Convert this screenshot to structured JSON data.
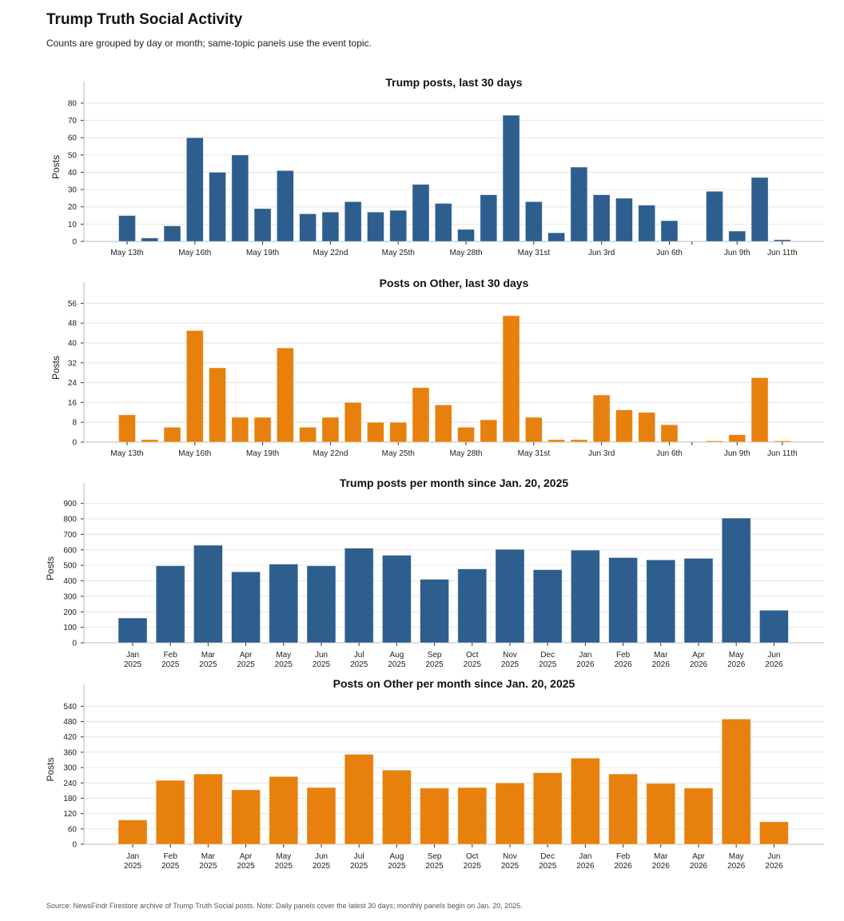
{
  "header": {
    "title": "Trump Truth Social Activity",
    "subtitle": "Counts are grouped by day or month; same-topic panels use the event topic."
  },
  "footer": {
    "note": "Source: NewsFindr Firestore archive of Trump Truth Social posts. Note: Daily panels cover the latest 30 days; monthly panels begin on Jan. 20, 2025."
  },
  "colors": {
    "blue": "#2e5e8e",
    "orange": "#e8800e",
    "grid": "#e6e6e6",
    "axis": "#bbbbbb"
  },
  "chart_data": [
    {
      "type": "bar",
      "title": "Trump posts, last 30 days",
      "ylabel": "Posts",
      "xlabel": "",
      "ylim": [
        0,
        86
      ],
      "yticks": [
        0,
        10,
        20,
        30,
        40,
        50,
        60,
        70,
        80
      ],
      "color": "blue",
      "grid": true,
      "x": [
        "May 13",
        "May 14",
        "May 15",
        "May 16",
        "May 17",
        "May 18",
        "May 19",
        "May 20",
        "May 21",
        "May 22",
        "May 23",
        "May 24",
        "May 25",
        "May 26",
        "May 27",
        "May 28",
        "May 29",
        "May 30",
        "May 31",
        "Jun 1",
        "Jun 2",
        "Jun 3",
        "Jun 4",
        "Jun 5",
        "Jun 6",
        "Jun 7",
        "Jun 8",
        "Jun 9",
        "Jun 10",
        "Jun 11"
      ],
      "values": [
        15,
        2,
        9,
        60,
        40,
        50,
        19,
        41,
        16,
        17,
        23,
        17,
        18,
        33,
        22,
        7,
        27,
        73,
        23,
        5,
        43,
        27,
        25,
        21,
        12,
        0,
        29,
        6,
        37,
        1
      ],
      "tick_labels": [
        {
          "index": 0,
          "label": "May 13th"
        },
        {
          "index": 3,
          "label": "May 16th"
        },
        {
          "index": 6,
          "label": "May 19th"
        },
        {
          "index": 9,
          "label": "May 22nd"
        },
        {
          "index": 12,
          "label": "May 25th"
        },
        {
          "index": 15,
          "label": "May 28th"
        },
        {
          "index": 18,
          "label": "May 31st"
        },
        {
          "index": 21,
          "label": "Jun 3rd"
        },
        {
          "index": 24,
          "label": "Jun 6th"
        },
        {
          "index": 27,
          "label": "Jun 9th"
        },
        {
          "index": 29,
          "label": "Jun 11th"
        }
      ]
    },
    {
      "type": "bar",
      "title": "Posts on Other, last 30 days",
      "ylabel": "Posts",
      "xlabel": "",
      "ylim": [
        0,
        60
      ],
      "yticks": [
        0,
        8,
        16,
        24,
        32,
        40,
        48,
        56
      ],
      "color": "orange",
      "grid": true,
      "x": [
        "May 13",
        "May 14",
        "May 15",
        "May 16",
        "May 17",
        "May 18",
        "May 19",
        "May 20",
        "May 21",
        "May 22",
        "May 23",
        "May 24",
        "May 25",
        "May 26",
        "May 27",
        "May 28",
        "May 29",
        "May 30",
        "May 31",
        "Jun 1",
        "Jun 2",
        "Jun 3",
        "Jun 4",
        "Jun 5",
        "Jun 6",
        "Jun 7",
        "Jun 8",
        "Jun 9",
        "Jun 10",
        "Jun 11"
      ],
      "values": [
        11,
        1,
        6,
        45,
        30,
        10,
        10,
        38,
        6,
        10,
        16,
        8,
        8,
        22,
        15,
        6,
        9,
        51,
        10,
        1,
        1,
        19,
        13,
        12,
        7,
        0,
        0.5,
        3,
        26,
        0.5
      ],
      "tick_labels": [
        {
          "index": 0,
          "label": "May 13th"
        },
        {
          "index": 3,
          "label": "May 16th"
        },
        {
          "index": 6,
          "label": "May 19th"
        },
        {
          "index": 9,
          "label": "May 22nd"
        },
        {
          "index": 12,
          "label": "May 25th"
        },
        {
          "index": 15,
          "label": "May 28th"
        },
        {
          "index": 18,
          "label": "May 31st"
        },
        {
          "index": 21,
          "label": "Jun 3rd"
        },
        {
          "index": 24,
          "label": "Jun 6th"
        },
        {
          "index": 27,
          "label": "Jun 9th"
        },
        {
          "index": 29,
          "label": "Jun 11th"
        }
      ]
    },
    {
      "type": "bar",
      "title": "Trump posts per month since Jan. 20, 2025",
      "ylabel": "Posts",
      "xlabel": "",
      "ylim": [
        0,
        960
      ],
      "yticks": [
        0,
        100,
        200,
        300,
        400,
        500,
        600,
        700,
        800,
        900
      ],
      "color": "blue",
      "grid": true,
      "categories": [
        [
          "Jan",
          "2025"
        ],
        [
          "Feb",
          "2025"
        ],
        [
          "Mar",
          "2025"
        ],
        [
          "Apr",
          "2025"
        ],
        [
          "May",
          "2025"
        ],
        [
          "Jun",
          "2025"
        ],
        [
          "Jul",
          "2025"
        ],
        [
          "Aug",
          "2025"
        ],
        [
          "Sep",
          "2025"
        ],
        [
          "Oct",
          "2025"
        ],
        [
          "Nov",
          "2025"
        ],
        [
          "Dec",
          "2025"
        ],
        [
          "Jan",
          "2026"
        ],
        [
          "Feb",
          "2026"
        ],
        [
          "Mar",
          "2026"
        ],
        [
          "Apr",
          "2026"
        ],
        [
          "May",
          "2026"
        ],
        [
          "Jun",
          "2026"
        ]
      ],
      "values": [
        160,
        497,
        630,
        458,
        508,
        497,
        611,
        565,
        410,
        477,
        603,
        472,
        598,
        550,
        535,
        545,
        805,
        210
      ]
    },
    {
      "type": "bar",
      "title": "Posts on Other per month since Jan. 20, 2025",
      "ylabel": "Posts",
      "xlabel": "",
      "ylim": [
        0,
        585
      ],
      "yticks": [
        0,
        60,
        120,
        180,
        240,
        300,
        360,
        420,
        480,
        540
      ],
      "color": "orange",
      "grid": true,
      "categories": [
        [
          "Jan",
          "2025"
        ],
        [
          "Feb",
          "2025"
        ],
        [
          "Mar",
          "2025"
        ],
        [
          "Apr",
          "2025"
        ],
        [
          "May",
          "2025"
        ],
        [
          "Jun",
          "2025"
        ],
        [
          "Jul",
          "2025"
        ],
        [
          "Aug",
          "2025"
        ],
        [
          "Sep",
          "2025"
        ],
        [
          "Oct",
          "2025"
        ],
        [
          "Nov",
          "2025"
        ],
        [
          "Dec",
          "2025"
        ],
        [
          "Jan",
          "2026"
        ],
        [
          "Feb",
          "2026"
        ],
        [
          "Mar",
          "2026"
        ],
        [
          "Apr",
          "2026"
        ],
        [
          "May",
          "2026"
        ],
        [
          "Jun",
          "2026"
        ]
      ],
      "values": [
        95,
        250,
        275,
        213,
        265,
        222,
        352,
        290,
        220,
        222,
        240,
        280,
        337,
        275,
        238,
        220,
        490,
        88
      ]
    }
  ]
}
